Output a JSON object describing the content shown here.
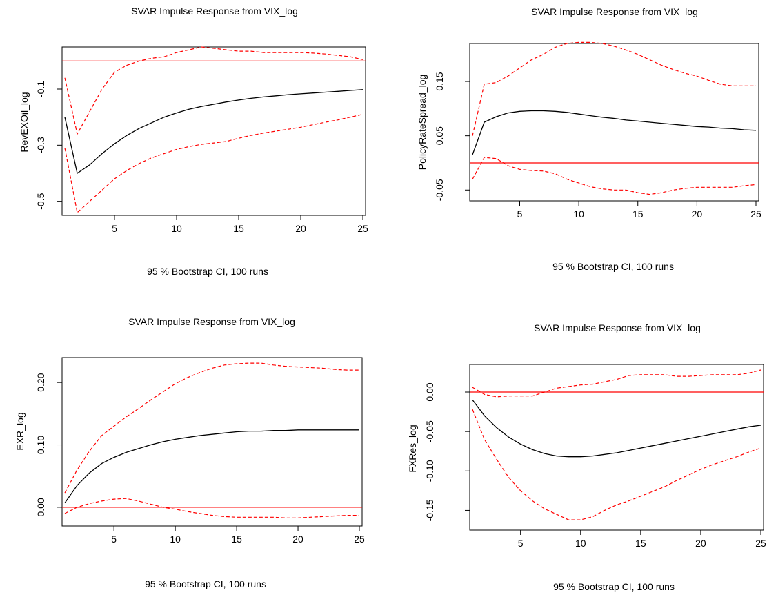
{
  "chart_data": [
    {
      "type": "line",
      "title": "SVAR Impulse Response from VIX_log",
      "xlabel": "95 % Bootstrap CI,  100 runs",
      "ylabel": "RevEXOil_log",
      "xlim": [
        1,
        25
      ],
      "ylim": [
        -0.55,
        0.05
      ],
      "xticks": [
        "5",
        "10",
        "15",
        "20",
        "25"
      ],
      "yticks": [
        "-0.1",
        "-0.3",
        "-0.5"
      ],
      "zero_line": 0,
      "x": [
        1,
        2,
        3,
        4,
        5,
        6,
        7,
        8,
        9,
        10,
        11,
        12,
        13,
        14,
        15,
        16,
        17,
        18,
        19,
        20,
        21,
        22,
        23,
        24,
        25
      ],
      "series": [
        {
          "role": "irf",
          "values": [
            -0.2,
            -0.4,
            -0.37,
            -0.33,
            -0.295,
            -0.265,
            -0.24,
            -0.22,
            -0.2,
            -0.185,
            -0.172,
            -0.162,
            -0.154,
            -0.146,
            -0.139,
            -0.133,
            -0.128,
            -0.124,
            -0.12,
            -0.117,
            -0.114,
            -0.111,
            -0.108,
            -0.105,
            -0.102
          ]
        },
        {
          "role": "lower",
          "values": [
            -0.31,
            -0.54,
            -0.5,
            -0.46,
            -0.42,
            -0.39,
            -0.365,
            -0.345,
            -0.33,
            -0.315,
            -0.305,
            -0.297,
            -0.292,
            -0.287,
            -0.275,
            -0.265,
            -0.257,
            -0.25,
            -0.243,
            -0.236,
            -0.227,
            -0.218,
            -0.21,
            -0.2,
            -0.19
          ]
        },
        {
          "role": "upper",
          "values": [
            -0.06,
            -0.26,
            -0.18,
            -0.1,
            -0.04,
            -0.015,
            0.0,
            0.01,
            0.015,
            0.03,
            0.04,
            0.05,
            0.045,
            0.04,
            0.035,
            0.035,
            0.03,
            0.03,
            0.03,
            0.03,
            0.028,
            0.025,
            0.02,
            0.015,
            0.005
          ]
        }
      ],
      "colors": {
        "irf": "#000000",
        "band": "#ff0000",
        "zero": "#ff0000"
      }
    },
    {
      "type": "line",
      "title": "SVAR Impulse Response from VIX_log",
      "xlabel": "95 % Bootstrap CI,  100 runs",
      "ylabel": "PolicyRateSpread_log",
      "xlim": [
        1,
        25
      ],
      "ylim": [
        -0.07,
        0.22
      ],
      "xticks": [
        "5",
        "10",
        "15",
        "20",
        "25"
      ],
      "yticks": [
        "-0.05",
        "0.05",
        "0.15"
      ],
      "zero_line": 0,
      "x": [
        1,
        2,
        3,
        4,
        5,
        6,
        7,
        8,
        9,
        10,
        11,
        12,
        13,
        14,
        15,
        16,
        17,
        18,
        19,
        20,
        21,
        22,
        23,
        24,
        25
      ],
      "series": [
        {
          "role": "irf",
          "values": [
            0.015,
            0.075,
            0.085,
            0.092,
            0.095,
            0.096,
            0.096,
            0.095,
            0.093,
            0.09,
            0.087,
            0.084,
            0.082,
            0.079,
            0.077,
            0.075,
            0.073,
            0.071,
            0.069,
            0.067,
            0.066,
            0.064,
            0.063,
            0.061,
            0.06
          ]
        },
        {
          "role": "lower",
          "values": [
            -0.03,
            0.01,
            0.008,
            -0.005,
            -0.012,
            -0.014,
            -0.015,
            -0.02,
            -0.03,
            -0.037,
            -0.044,
            -0.048,
            -0.05,
            -0.05,
            -0.055,
            -0.058,
            -0.055,
            -0.05,
            -0.047,
            -0.045,
            -0.045,
            -0.045,
            -0.045,
            -0.042,
            -0.04
          ]
        },
        {
          "role": "upper",
          "values": [
            0.05,
            0.145,
            0.148,
            0.16,
            0.175,
            0.19,
            0.2,
            0.213,
            0.22,
            0.222,
            0.222,
            0.22,
            0.215,
            0.208,
            0.2,
            0.19,
            0.18,
            0.172,
            0.165,
            0.16,
            0.152,
            0.145,
            0.142,
            0.142,
            0.142
          ]
        }
      ],
      "colors": {
        "irf": "#000000",
        "band": "#ff0000",
        "zero": "#ff0000"
      }
    },
    {
      "type": "line",
      "title": "SVAR Impulse Response from VIX_log",
      "xlabel": "95 % Bootstrap CI,  100 runs",
      "ylabel": "EXR_log",
      "xlim": [
        1,
        25
      ],
      "ylim": [
        -0.03,
        0.24
      ],
      "xticks": [
        "5",
        "10",
        "15",
        "20",
        "25"
      ],
      "yticks": [
        "0.00",
        "0.10",
        "0.20"
      ],
      "zero_line": 0,
      "x": [
        1,
        2,
        3,
        4,
        5,
        6,
        7,
        8,
        9,
        10,
        11,
        12,
        13,
        14,
        15,
        16,
        17,
        18,
        19,
        20,
        21,
        22,
        23,
        24,
        25
      ],
      "series": [
        {
          "role": "irf",
          "values": [
            0.007,
            0.035,
            0.055,
            0.07,
            0.08,
            0.088,
            0.094,
            0.1,
            0.105,
            0.109,
            0.112,
            0.115,
            0.117,
            0.119,
            0.121,
            0.122,
            0.122,
            0.123,
            0.123,
            0.124,
            0.124,
            0.124,
            0.124,
            0.124,
            0.124
          ]
        },
        {
          "role": "lower",
          "values": [
            -0.01,
            0.0,
            0.006,
            0.01,
            0.013,
            0.014,
            0.01,
            0.005,
            0.0,
            -0.003,
            -0.007,
            -0.01,
            -0.013,
            -0.015,
            -0.016,
            -0.016,
            -0.016,
            -0.016,
            -0.017,
            -0.017,
            -0.016,
            -0.015,
            -0.014,
            -0.013,
            -0.013
          ]
        },
        {
          "role": "upper",
          "values": [
            0.023,
            0.06,
            0.09,
            0.115,
            0.13,
            0.145,
            0.158,
            0.172,
            0.185,
            0.198,
            0.208,
            0.216,
            0.223,
            0.228,
            0.23,
            0.231,
            0.231,
            0.228,
            0.226,
            0.225,
            0.224,
            0.223,
            0.221,
            0.22,
            0.22
          ]
        }
      ],
      "colors": {
        "irf": "#000000",
        "band": "#ff0000",
        "zero": "#ff0000"
      }
    },
    {
      "type": "line",
      "title": "SVAR Impulse Response from VIX_log",
      "xlabel": "95 % Bootstrap CI,  100 runs",
      "ylabel": "FXRes_log",
      "xlim": [
        1,
        25
      ],
      "ylim": [
        -0.175,
        0.035
      ],
      "xticks": [
        "5",
        "10",
        "15",
        "20",
        "25"
      ],
      "yticks": [
        "-0.15",
        "-0.10",
        "-0.05",
        "0.00"
      ],
      "zero_line": 0,
      "x": [
        1,
        2,
        3,
        4,
        5,
        6,
        7,
        8,
        9,
        10,
        11,
        12,
        13,
        14,
        15,
        16,
        17,
        18,
        19,
        20,
        21,
        22,
        23,
        24,
        25
      ],
      "series": [
        {
          "role": "irf",
          "values": [
            -0.01,
            -0.03,
            -0.045,
            -0.057,
            -0.066,
            -0.073,
            -0.078,
            -0.081,
            -0.082,
            -0.082,
            -0.081,
            -0.079,
            -0.077,
            -0.074,
            -0.071,
            -0.068,
            -0.065,
            -0.062,
            -0.059,
            -0.056,
            -0.053,
            -0.05,
            -0.047,
            -0.044,
            -0.042
          ]
        },
        {
          "role": "lower",
          "values": [
            -0.022,
            -0.06,
            -0.085,
            -0.108,
            -0.125,
            -0.138,
            -0.148,
            -0.155,
            -0.162,
            -0.162,
            -0.158,
            -0.15,
            -0.143,
            -0.138,
            -0.132,
            -0.126,
            -0.12,
            -0.112,
            -0.105,
            -0.098,
            -0.092,
            -0.087,
            -0.082,
            -0.076,
            -0.071
          ]
        },
        {
          "role": "upper",
          "values": [
            0.006,
            -0.003,
            -0.006,
            -0.005,
            -0.005,
            -0.005,
            0.0,
            0.005,
            0.007,
            0.009,
            0.01,
            0.013,
            0.016,
            0.021,
            0.022,
            0.022,
            0.022,
            0.02,
            0.02,
            0.021,
            0.022,
            0.022,
            0.022,
            0.024,
            0.028
          ]
        }
      ],
      "colors": {
        "irf": "#000000",
        "band": "#ff0000",
        "zero": "#ff0000"
      }
    }
  ]
}
